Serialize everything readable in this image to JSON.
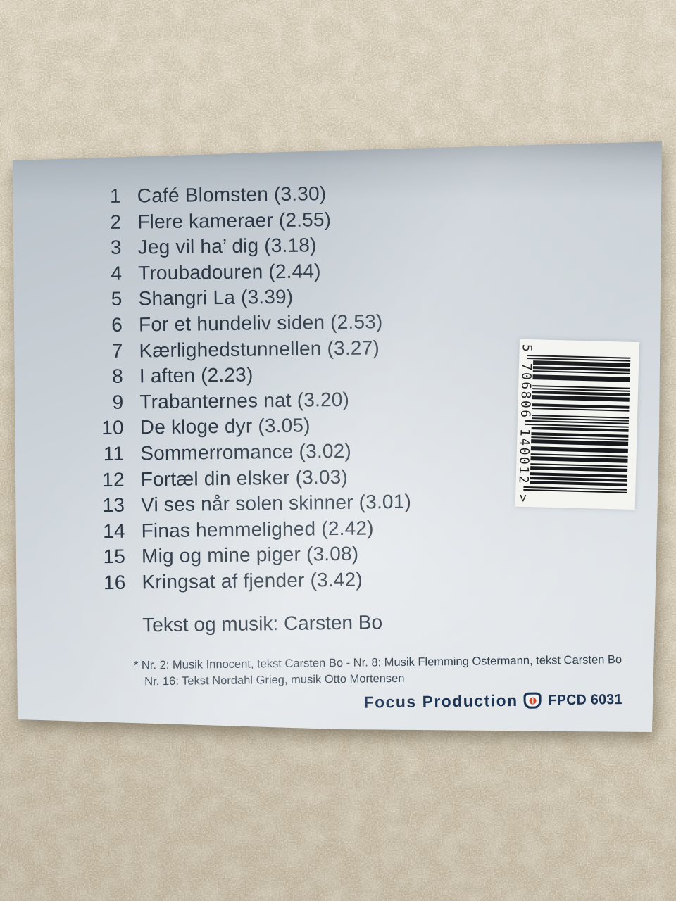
{
  "colors": {
    "ink": "#2b3744",
    "ink_soft": "#32404e",
    "stone_base": "#c9bda6",
    "stone_light": "#ebe3ce",
    "stone_dark": "#a2947a",
    "case_top": "#adb5bd",
    "case_mid": "#ccd3d9",
    "case_light": "#e7eaec",
    "label_white": "#f4f4f1",
    "bar_black": "#17181b",
    "logo_navy": "#1d3353",
    "logo_red": "#cf4a2a"
  },
  "album_back": {
    "tracks": [
      {
        "no": "1",
        "title": "Café Blomsten",
        "duration": "3.30"
      },
      {
        "no": "2",
        "title": "Flere kameraer",
        "duration": "2.55"
      },
      {
        "no": "3",
        "title": "Jeg vil ha’ dig",
        "duration": "3.18"
      },
      {
        "no": "4",
        "title": "Troubadouren",
        "duration": "2.44"
      },
      {
        "no": "5",
        "title": "Shangri La",
        "duration": "3.39"
      },
      {
        "no": "6",
        "title": "For et hundeliv siden",
        "duration": "2.53"
      },
      {
        "no": "7",
        "title": "Kærlighedstunnellen",
        "duration": "3.27"
      },
      {
        "no": "8",
        "title": "I aften",
        "duration": "2.23"
      },
      {
        "no": "9",
        "title": "Trabanternes nat",
        "duration": "3.20"
      },
      {
        "no": "10",
        "title": "De kloge dyr",
        "duration": "3.05"
      },
      {
        "no": "11",
        "title": "Sommerromance",
        "duration": "3.02"
      },
      {
        "no": "12",
        "title": "Fortæl din elsker",
        "duration": "3.03"
      },
      {
        "no": "13",
        "title": "Vi ses når solen skinner",
        "duration": "3.01"
      },
      {
        "no": "14",
        "title": "Finas hemmelighed",
        "duration": "2.42"
      },
      {
        "no": "15",
        "title": "Mig og mine piger",
        "duration": "3.08"
      },
      {
        "no": "16",
        "title": "Kringsat af fjender",
        "duration": "3.42"
      }
    ],
    "credit_line": "Tekst og musik: Carsten Bo",
    "footnotes": [
      "* Nr. 2: Musik Innocent, tekst Carsten Bo - Nr. 8: Musik Flemming Ostermann, tekst Carsten Bo",
      "Nr. 16: Tekst Nordahl Grieg, musik Otto Mortensen"
    ],
    "publisher": "Focus Production",
    "catalog_number": "FPCD 6031",
    "barcode": {
      "digits": "5 706806 140012 >",
      "value": "5706806140012",
      "pattern": "10101110110100111000010101101110001101000010101010110011010111001110010111001011001101101100101",
      "guard_modules": [
        1,
        3,
        47,
        49,
        93,
        95
      ]
    }
  }
}
